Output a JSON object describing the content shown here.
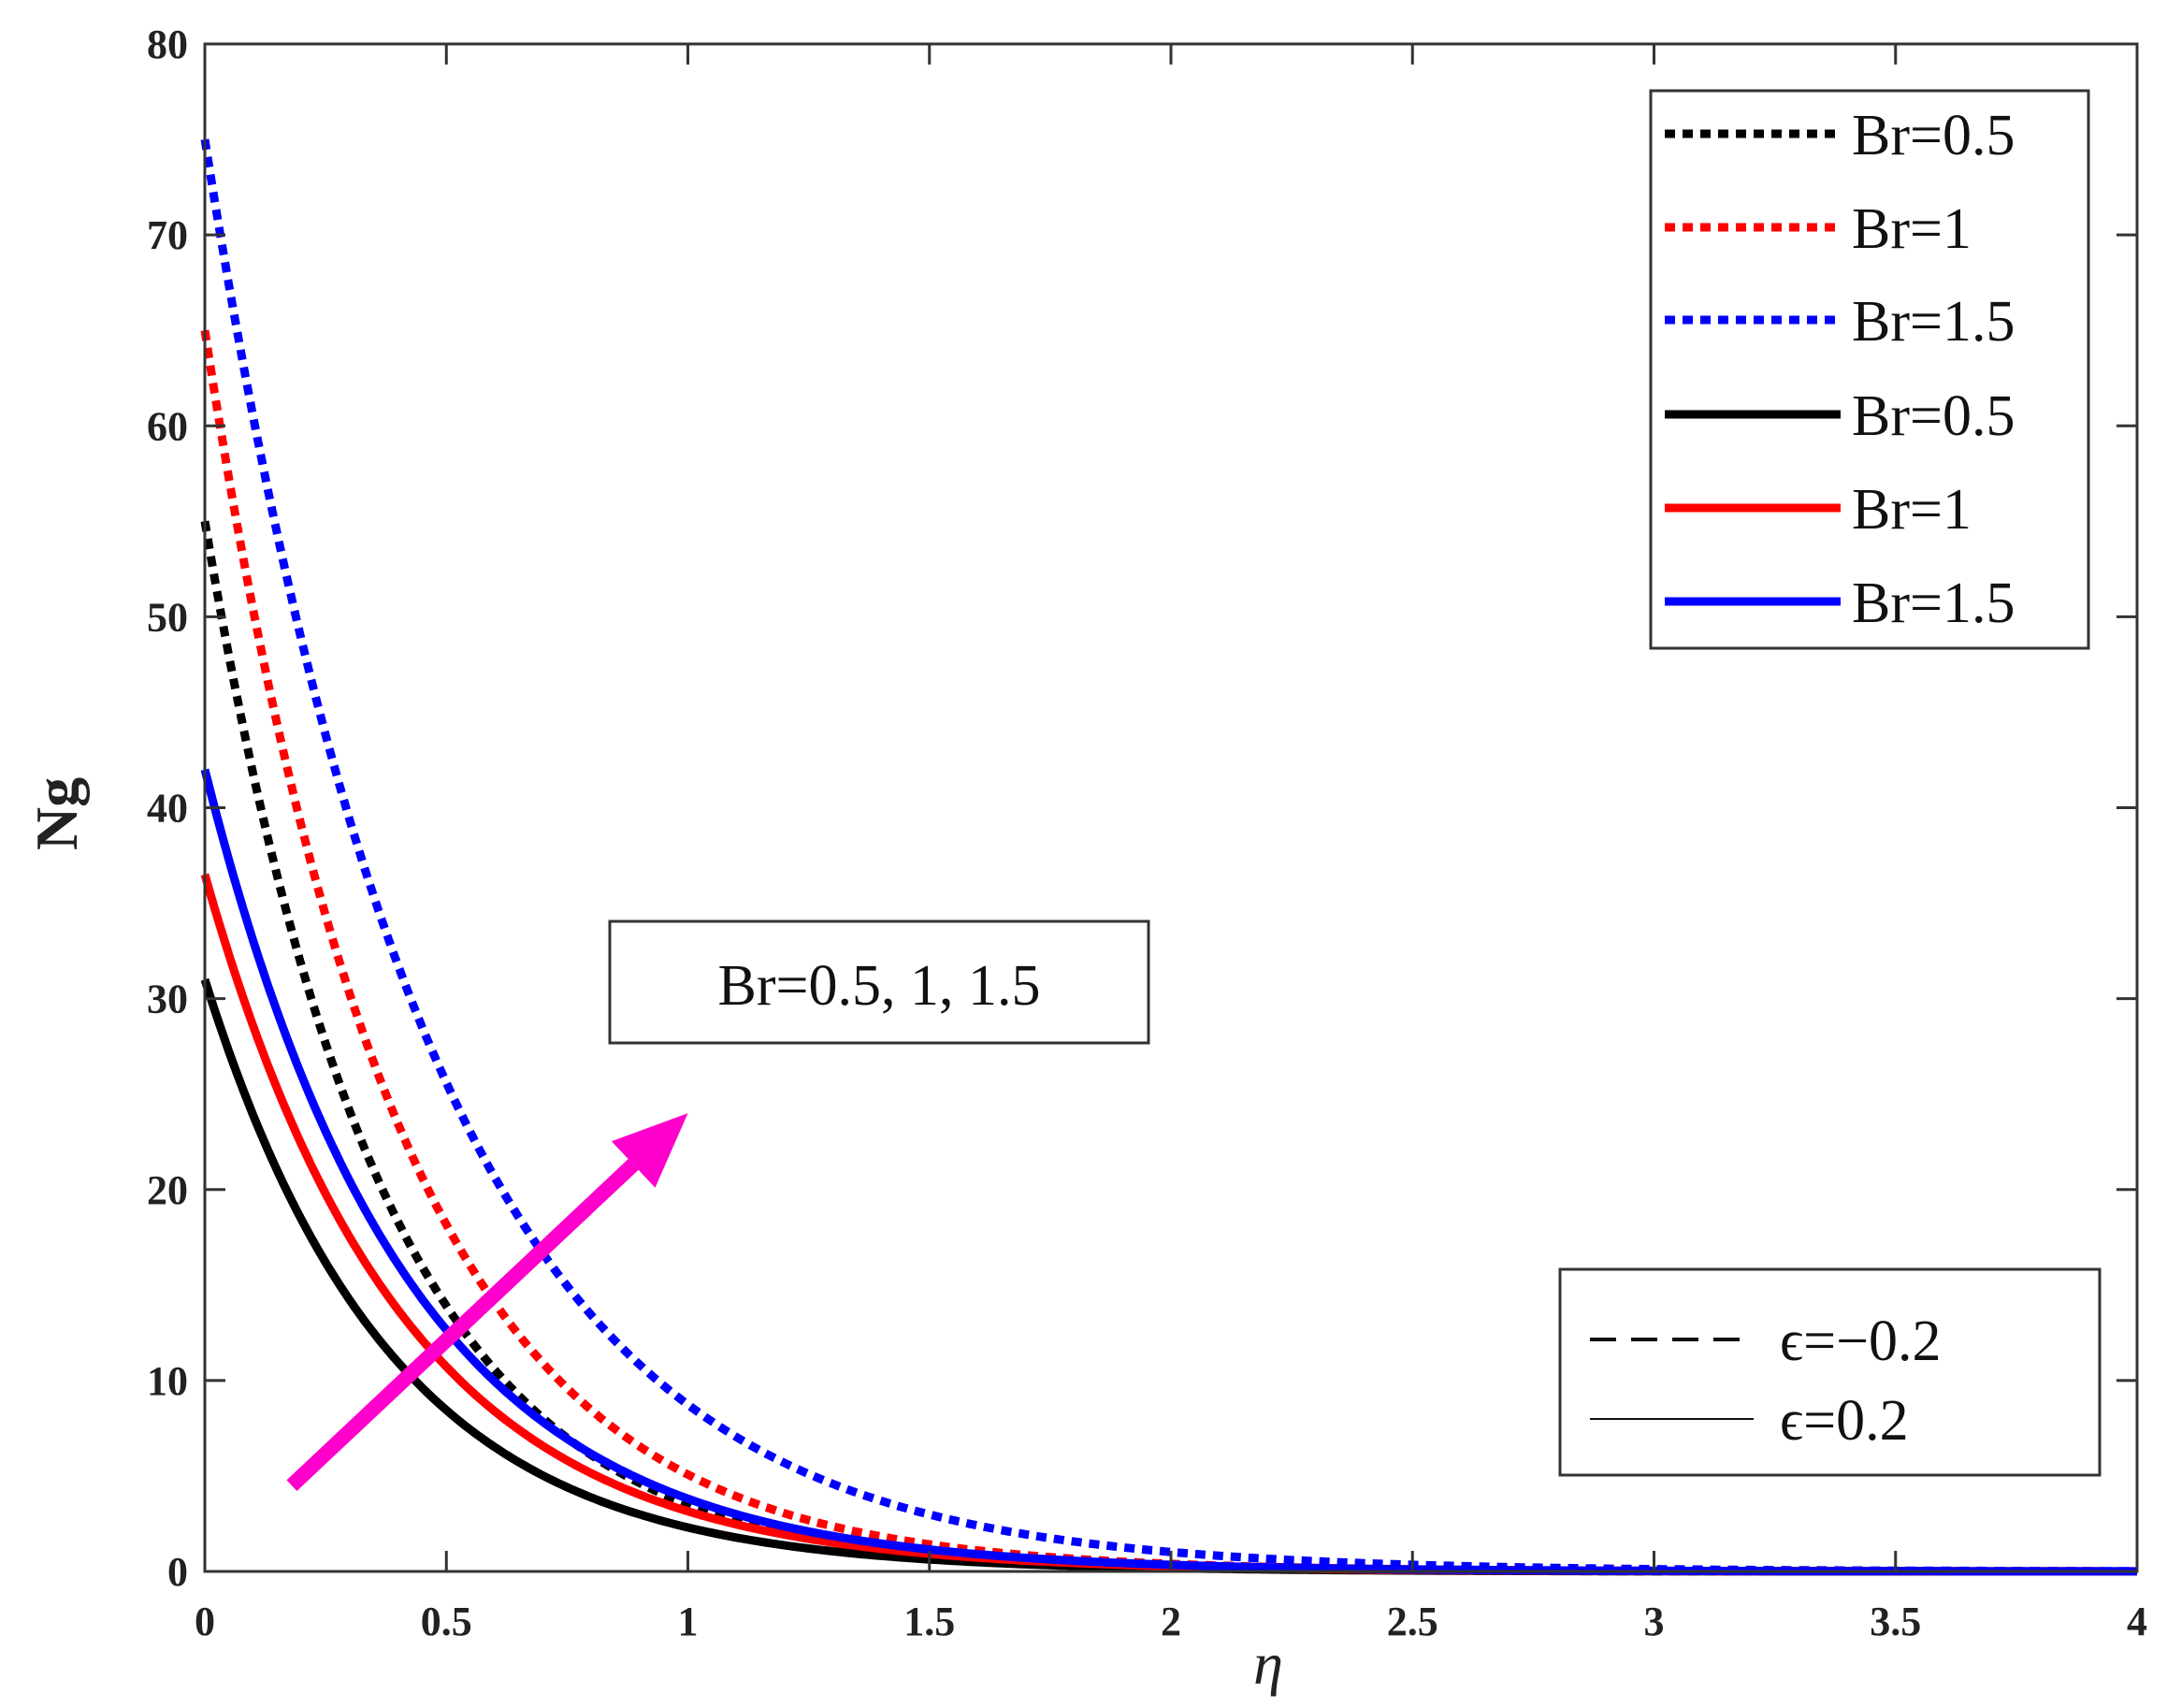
{
  "chart_data": {
    "type": "line",
    "xlabel": "η",
    "ylabel": "Ng",
    "xlim": [
      0,
      4
    ],
    "ylim": [
      0,
      80
    ],
    "xticks": [
      0,
      0.5,
      1,
      1.5,
      2,
      2.5,
      3,
      3.5,
      4
    ],
    "xtick_labels": [
      "0",
      "0.5",
      "1",
      "1.5",
      "2",
      "2.5",
      "3",
      "3.5",
      "4"
    ],
    "yticks": [
      0,
      10,
      20,
      30,
      40,
      50,
      60,
      70,
      80
    ],
    "ytick_labels": [
      "0",
      "10",
      "20",
      "30",
      "40",
      "50",
      "60",
      "70",
      "80"
    ],
    "grid": false,
    "legend_position": "top-right",
    "series": [
      {
        "name": "Br=0.5",
        "color": "#000000",
        "style": "dotted",
        "y0": 55,
        "decay": 2.75
      },
      {
        "name": "Br=1",
        "color": "#ff0000",
        "style": "dotted",
        "y0": 65,
        "decay": 2.55
      },
      {
        "name": "Br=1.5",
        "color": "#0000ff",
        "style": "dotted",
        "y0": 75,
        "decay": 2.15
      },
      {
        "name": "Br=0.5",
        "color": "#000000",
        "style": "solid",
        "y0": 31,
        "decay": 2.6
      },
      {
        "name": "Br=1",
        "color": "#ff0000",
        "style": "solid",
        "y0": 36.5,
        "decay": 2.45
      },
      {
        "name": "Br=1.5",
        "color": "#0000ff",
        "style": "solid",
        "y0": 42,
        "decay": 2.4
      }
    ],
    "annotations": {
      "trend_label": "Br=0.5, 1, 1.5",
      "arrow_color": "#ff00cc",
      "arrow_from": [
        0.18,
        4.5
      ],
      "arrow_to": [
        1.0,
        24
      ],
      "style_legend": [
        {
          "label": "ϵ=−0.2",
          "style": "dashed"
        },
        {
          "label": "ϵ=0.2",
          "style": "solid"
        }
      ]
    }
  }
}
